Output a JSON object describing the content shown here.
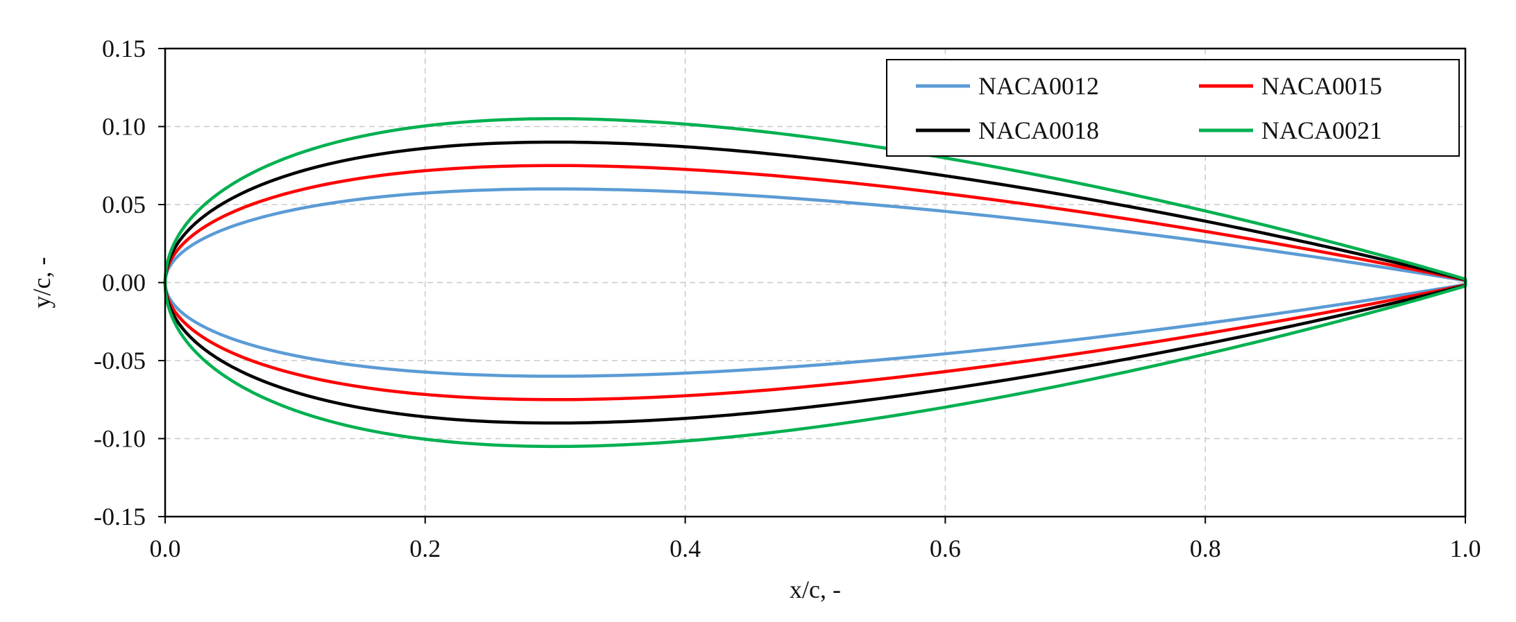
{
  "chart_data": {
    "type": "line",
    "title": "",
    "xlabel": "x/c, -",
    "ylabel": "y/c, -",
    "xlim": [
      0.0,
      1.0
    ],
    "ylim": [
      -0.15,
      0.15
    ],
    "grid": true,
    "legend_position": "top-right",
    "legend_columns": 2,
    "x_ticks": [
      0.0,
      0.2,
      0.4,
      0.6,
      0.8,
      1.0
    ],
    "x_tick_labels": [
      "0.0",
      "0.2",
      "0.4",
      "0.6",
      "0.8",
      "1.0"
    ],
    "y_ticks": [
      0.15,
      0.1,
      0.05,
      0.0,
      -0.05,
      -0.1,
      -0.15
    ],
    "y_tick_labels": [
      "0.15",
      "0.10",
      "0.05",
      "0.00",
      "-0.05",
      "-0.10",
      "-0.15"
    ],
    "x": [
      0,
      0.0125,
      0.025,
      0.05,
      0.075,
      0.1,
      0.15,
      0.2,
      0.25,
      0.3,
      0.4,
      0.5,
      0.6,
      0.7,
      0.8,
      0.9,
      0.95,
      1.0
    ],
    "series": [
      {
        "name": "NACA0012",
        "color": "#5b9bd5",
        "thickness_ratio": 0.12,
        "upper": [
          0,
          0.0189,
          0.0262,
          0.0355,
          0.042,
          0.0468,
          0.0534,
          0.0574,
          0.0594,
          0.06,
          0.058,
          0.0529,
          0.0456,
          0.0366,
          0.0262,
          0.0145,
          0.0081,
          0.0013
        ],
        "lower": [
          0,
          -0.0189,
          -0.0262,
          -0.0355,
          -0.042,
          -0.0468,
          -0.0534,
          -0.0574,
          -0.0594,
          -0.06,
          -0.058,
          -0.0529,
          -0.0456,
          -0.0366,
          -0.0262,
          -0.0145,
          -0.0081,
          -0.0013
        ]
      },
      {
        "name": "NACA0015",
        "color": "#ff0000",
        "thickness_ratio": 0.15,
        "upper": [
          0,
          0.0237,
          0.0327,
          0.0443,
          0.0525,
          0.0585,
          0.0668,
          0.0717,
          0.0743,
          0.075,
          0.0725,
          0.0662,
          0.057,
          0.0458,
          0.0328,
          0.0181,
          0.0101,
          0.0016
        ],
        "lower": [
          0,
          -0.0237,
          -0.0327,
          -0.0443,
          -0.0525,
          -0.0585,
          -0.0668,
          -0.0717,
          -0.0743,
          -0.075,
          -0.0725,
          -0.0662,
          -0.057,
          -0.0458,
          -0.0328,
          -0.0181,
          -0.0101,
          -0.0016
        ]
      },
      {
        "name": "NACA0018",
        "color": "#000000",
        "thickness_ratio": 0.18,
        "upper": [
          0,
          0.0284,
          0.0392,
          0.0532,
          0.063,
          0.0702,
          0.0801,
          0.0861,
          0.0892,
          0.09,
          0.087,
          0.0794,
          0.0684,
          0.055,
          0.0394,
          0.0217,
          0.0121,
          0.0019
        ],
        "lower": [
          0,
          -0.0284,
          -0.0392,
          -0.0532,
          -0.063,
          -0.0702,
          -0.0801,
          -0.0861,
          -0.0892,
          -0.09,
          -0.087,
          -0.0794,
          -0.0684,
          -0.055,
          -0.0394,
          -0.0217,
          -0.0121,
          -0.0019
        ]
      },
      {
        "name": "NACA0021",
        "color": "#00b050",
        "thickness_ratio": 0.21,
        "upper": [
          0,
          0.0331,
          0.0458,
          0.0621,
          0.0735,
          0.0819,
          0.0935,
          0.1004,
          0.104,
          0.105,
          0.1015,
          0.0926,
          0.0798,
          0.0641,
          0.0459,
          0.0254,
          0.0141,
          0.0022
        ],
        "lower": [
          0,
          -0.0331,
          -0.0458,
          -0.0621,
          -0.0735,
          -0.0819,
          -0.0935,
          -0.1004,
          -0.104,
          -0.105,
          -0.1015,
          -0.0926,
          -0.0798,
          -0.0641,
          -0.0459,
          -0.0254,
          -0.0141,
          -0.0022
        ]
      }
    ]
  }
}
